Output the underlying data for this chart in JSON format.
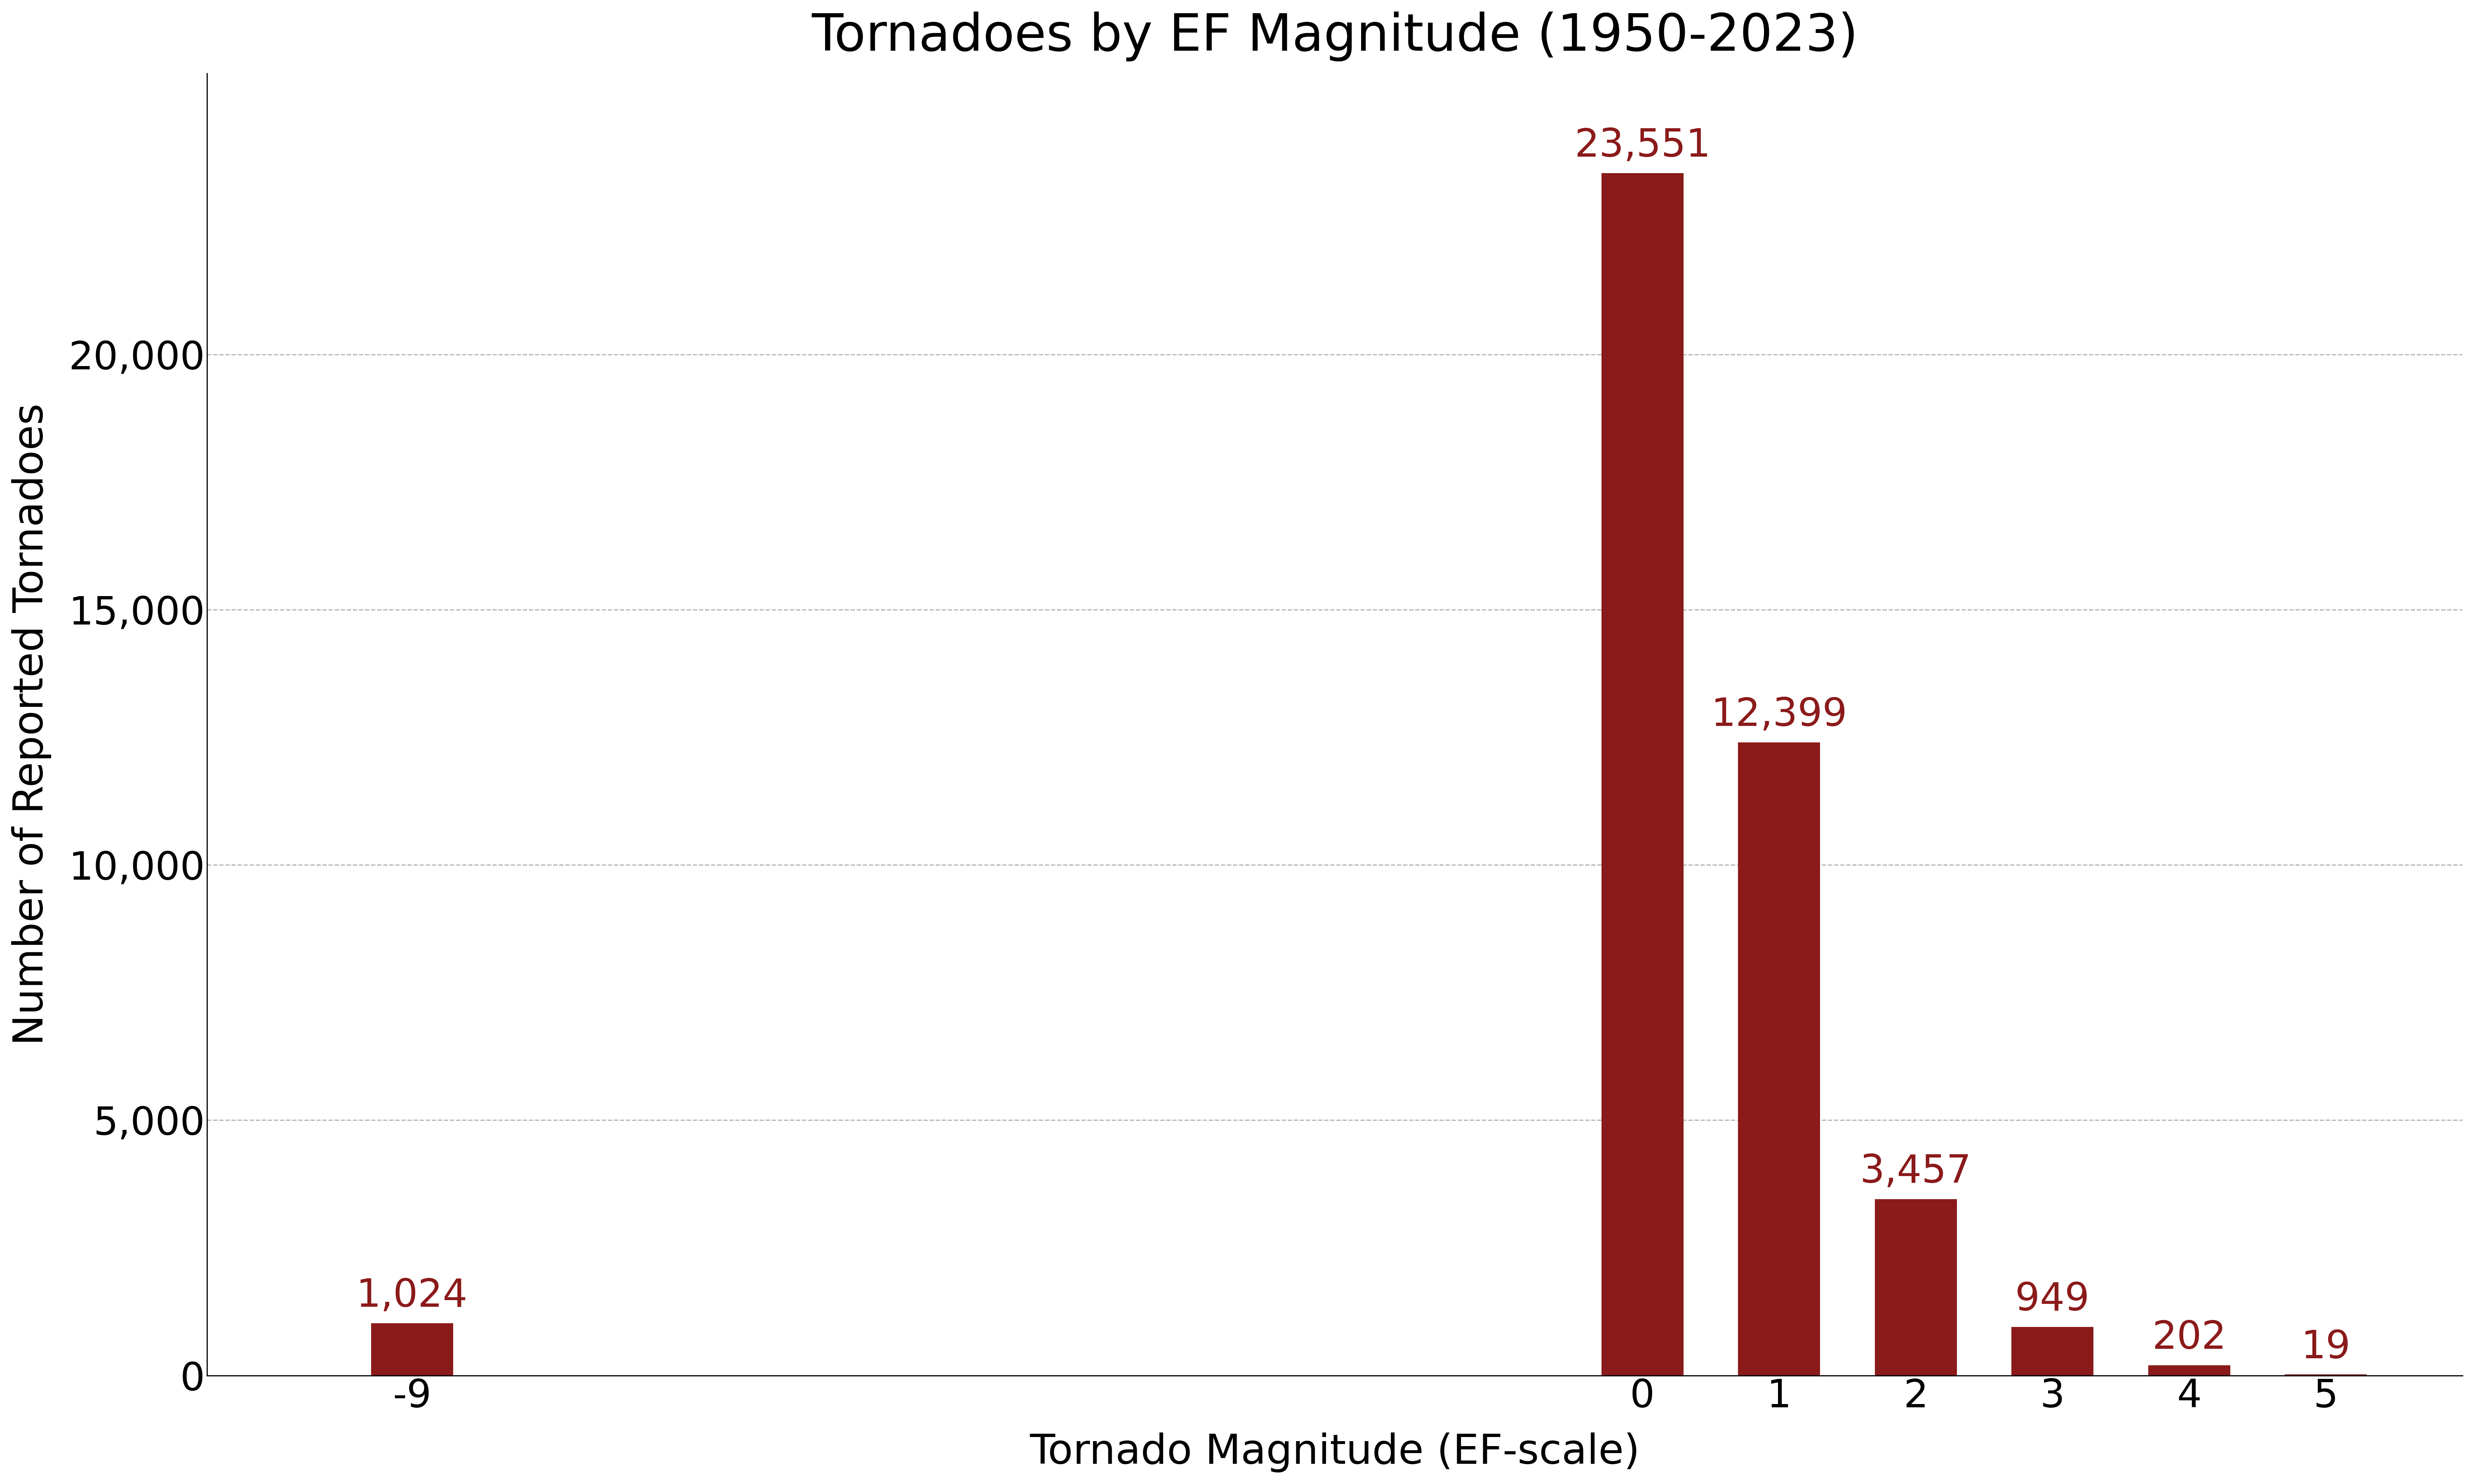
{
  "title": "Tornadoes by EF Magnitude (1950-2023)",
  "xlabel": "Tornado Magnitude (EF-scale)",
  "ylabel": "Number of Reported Tornadoes",
  "categories": [
    -9,
    0,
    1,
    2,
    3,
    4,
    5
  ],
  "values": [
    1024,
    23551,
    12399,
    3457,
    949,
    202,
    19
  ],
  "bar_color": "#8B1A1A",
  "bar_width": 0.6,
  "ylim": [
    0,
    25500
  ],
  "yticks": [
    0,
    5000,
    10000,
    15000,
    20000
  ],
  "xtick_labels": [
    "-9",
    "0",
    "1",
    "2",
    "3",
    "4",
    "5"
  ],
  "label_color": "#8B1A1A",
  "grid_color": "#AAAAAA",
  "title_fontsize": 90,
  "axis_label_fontsize": 72,
  "tick_fontsize": 68,
  "annotation_fontsize": 68,
  "background_color": "#FFFFFF"
}
